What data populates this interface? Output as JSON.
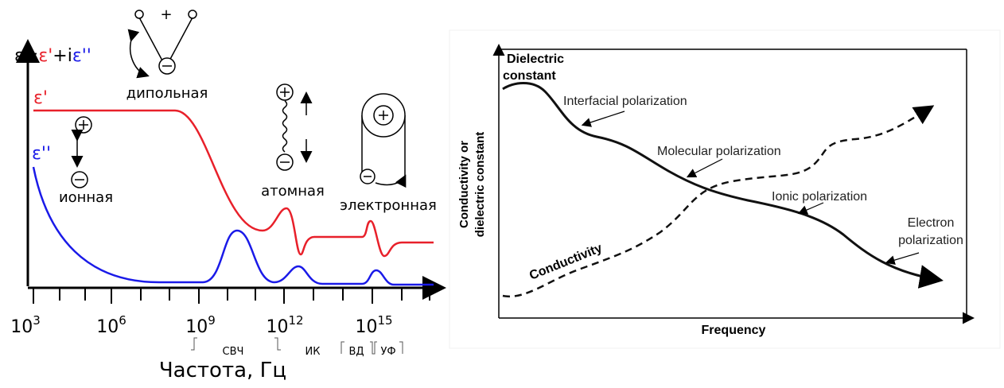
{
  "left": {
    "equation": [
      "ε=",
      "ε'",
      "+i",
      "ε''"
    ],
    "dipole_sign": "+",
    "dipole_label": "дипольная",
    "eps_real": "ε'",
    "eps_imag": "ε''",
    "ionic_label": "ионная",
    "atomic_label": "атомная",
    "electronic_label": "электронная",
    "x_ticks": [
      {
        "base": "10",
        "power": "3"
      },
      {
        "base": "10",
        "power": "6"
      },
      {
        "base": "10",
        "power": "9"
      },
      {
        "base": "10",
        "power": "12"
      },
      {
        "base": "10",
        "power": "15"
      }
    ],
    "bands": [
      "СВЧ",
      "ИК",
      "ВД",
      "УФ"
    ],
    "x_label": "Частота, Гц"
  },
  "right": {
    "y_top_label": [
      "Dielectric",
      "constant"
    ],
    "y_label": [
      "Conductivity or",
      "dielectric constant"
    ],
    "x_label": "Frequency",
    "annotations": [
      "Interfacial polarization",
      "Molecular polarization",
      "Ionic polarization"
    ],
    "electron_label": [
      "Electron",
      "polarization"
    ],
    "conductivity_label": "Conductivity"
  }
}
